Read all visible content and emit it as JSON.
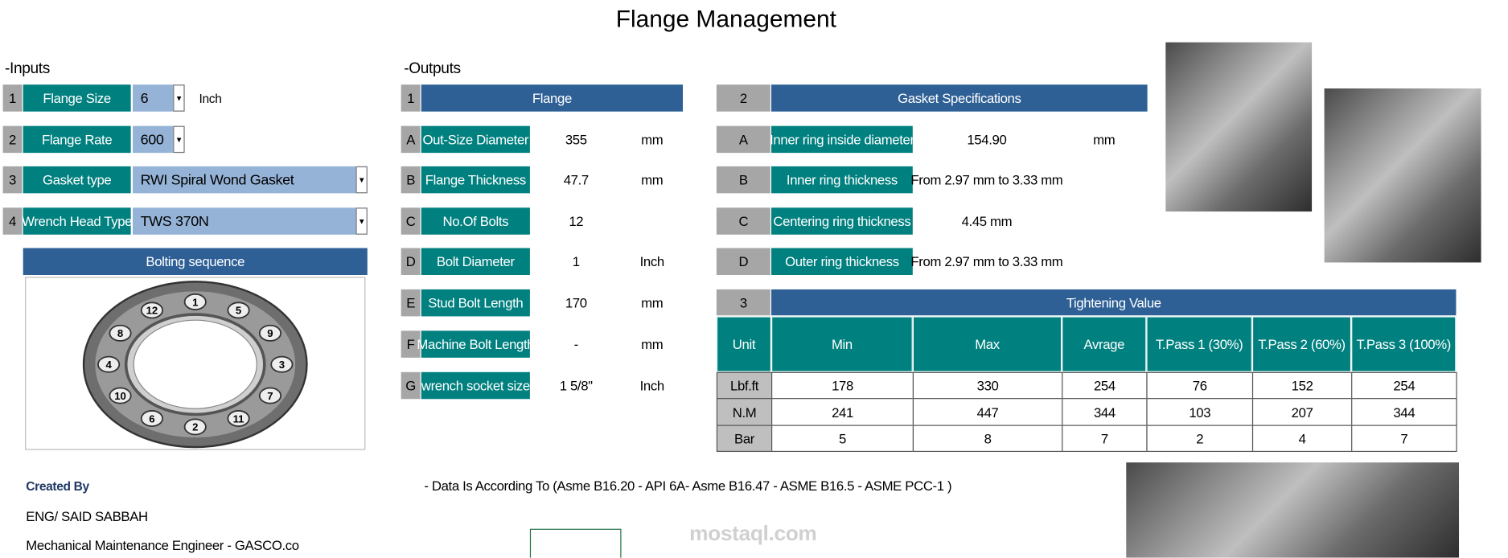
{
  "title": "Flange Management",
  "inputs": {
    "heading": "-Inputs",
    "rows": [
      {
        "num": "1",
        "label": "Flange Size",
        "value": "6",
        "unit": "Inch"
      },
      {
        "num": "2",
        "label": "Flange Rate",
        "value": "600"
      },
      {
        "num": "3",
        "label": "Gasket type",
        "value": "RWI Spiral Wond Gasket"
      },
      {
        "num": "4",
        "label": "Wrench Head Type",
        "value": "TWS 370N"
      }
    ]
  },
  "bolting": {
    "title": "Bolting sequence",
    "bolts": [
      "1",
      "5",
      "9",
      "3",
      "7",
      "11",
      "2",
      "6",
      "10",
      "4",
      "8",
      "12"
    ]
  },
  "outputs": {
    "heading": "-Outputs",
    "flange": {
      "num": "1",
      "title": "Flange",
      "rows": [
        {
          "letter": "A",
          "label": "Out-Size Diameter",
          "value": "355",
          "unit": "mm"
        },
        {
          "letter": "B",
          "label": "Flange Thickness",
          "value": "47.7",
          "unit": "mm"
        },
        {
          "letter": "C",
          "label": "No.Of Bolts",
          "value": "12"
        },
        {
          "letter": "D",
          "label": "Bolt Diameter",
          "value": "1",
          "unit": "Inch"
        },
        {
          "letter": "E",
          "label": "Stud Bolt Length",
          "value": "170",
          "unit": "mm"
        },
        {
          "letter": "F",
          "label": "Machine Bolt Length",
          "value": "-",
          "unit": "mm"
        },
        {
          "letter": "G",
          "label": "wrench socket size",
          "value": "1 5/8''",
          "unit": "Inch"
        }
      ]
    },
    "gasket": {
      "num": "2",
      "title": "Gasket Specifications",
      "rows": [
        {
          "letter": "A",
          "label": "Inner ring inside diameter",
          "value": "154.90",
          "unit": "mm"
        },
        {
          "letter": "B",
          "label": "Inner ring thickness",
          "value": "From 2.97 mm to 3.33 mm"
        },
        {
          "letter": "C",
          "label": "Centering ring thickness",
          "value": "4.45 mm"
        },
        {
          "letter": "D",
          "label": "Outer ring thickness",
          "value": "From 2.97 mm to 3.33 mm"
        }
      ]
    },
    "tightening": {
      "num": "3",
      "title": "Tightening Value",
      "columns": [
        "Unit",
        "Min",
        "Max",
        "Avrage",
        "T.Pass 1 (30%)",
        "T.Pass 2 (60%)",
        "T.Pass 3 (100%)"
      ],
      "rows": [
        [
          "Lbf.ft",
          "178",
          "330",
          "254",
          "76",
          "152",
          "254"
        ],
        [
          "N.M",
          "241",
          "447",
          "344",
          "103",
          "207",
          "344"
        ],
        [
          "Bar",
          "5",
          "8",
          "7",
          "2",
          "4",
          "7"
        ]
      ]
    }
  },
  "note": "- Data  Is According To (Asme B16.20 - API  6A-  Asme B16.47 - ASME B16.5 - ASME PCC-1  )",
  "credits": {
    "created_by": "Created By",
    "name": "ENG/ SAID SABBAH",
    "role": "Mechanical Maintenance Engineer - GASCO.co"
  },
  "watermark": "mostaql.com"
}
